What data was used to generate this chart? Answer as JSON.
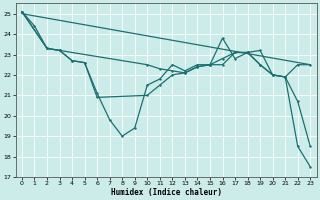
{
  "xlabel": "Humidex (Indice chaleur)",
  "xlim": [
    -0.5,
    23.5
  ],
  "ylim": [
    17,
    25.5
  ],
  "yticks": [
    17,
    18,
    19,
    20,
    21,
    22,
    23,
    24,
    25
  ],
  "xticks": [
    0,
    1,
    2,
    3,
    4,
    5,
    6,
    7,
    8,
    9,
    10,
    11,
    12,
    13,
    14,
    15,
    16,
    17,
    18,
    19,
    20,
    21,
    22,
    23
  ],
  "background_color": "#ccecea",
  "grid_color": "#ffffff",
  "line_color": "#1a7070",
  "series1_x": [
    0,
    1,
    2,
    3,
    4,
    5,
    6,
    7,
    8,
    9,
    10,
    11,
    12,
    13,
    14,
    15,
    16,
    17,
    18,
    19,
    20,
    21,
    22,
    23
  ],
  "series1_y": [
    25.1,
    24.4,
    23.3,
    23.2,
    22.7,
    22.6,
    21.1,
    19.8,
    19.0,
    19.4,
    21.5,
    21.8,
    22.5,
    22.2,
    22.5,
    22.5,
    23.8,
    22.8,
    23.1,
    23.2,
    22.0,
    21.9,
    20.7,
    18.5
  ],
  "series2_x": [
    0,
    23
  ],
  "series2_y": [
    25.0,
    22.5
  ],
  "series3_x": [
    0,
    2,
    3,
    10,
    11,
    12,
    13,
    14,
    15,
    16,
    17,
    18,
    19,
    20,
    21,
    22,
    23
  ],
  "series3_y": [
    25.1,
    23.3,
    23.2,
    22.5,
    22.3,
    22.2,
    22.1,
    22.4,
    22.5,
    22.8,
    23.1,
    23.1,
    22.5,
    22.0,
    21.9,
    22.5,
    22.5
  ],
  "series4_x": [
    0,
    2,
    3,
    4,
    5,
    6,
    10,
    11,
    12,
    13,
    14,
    15,
    16,
    17,
    18,
    19,
    20,
    21,
    22,
    23
  ],
  "series4_y": [
    25.1,
    23.3,
    23.2,
    22.7,
    22.6,
    20.9,
    21.0,
    21.5,
    22.0,
    22.1,
    22.4,
    22.5,
    22.5,
    23.1,
    23.1,
    22.5,
    22.0,
    21.9,
    18.5,
    17.5
  ]
}
